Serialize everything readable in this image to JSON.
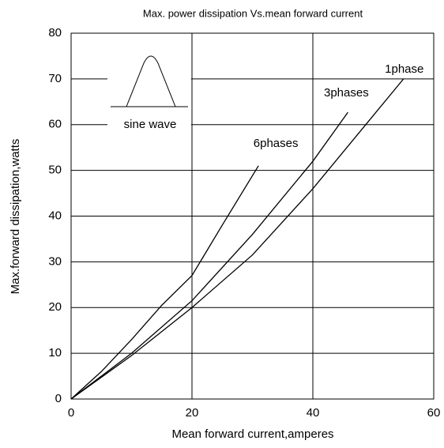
{
  "chart_data": {
    "type": "line",
    "title": "Max. power dissipation Vs.mean forward current",
    "x_label": "Mean forward current,amperes",
    "y_label": "Max.forward dissipation,watts",
    "inset_label": "sine wave",
    "xlim": [
      0,
      60
    ],
    "xticks": [
      0,
      20,
      40,
      60
    ],
    "ylim": [
      0,
      80
    ],
    "yticks": [
      0,
      10,
      20,
      30,
      40,
      50,
      60,
      70,
      80
    ],
    "grid": true,
    "series": [
      {
        "name": "1phase",
        "color": "#000000",
        "x": [
          0,
          10,
          20,
          30,
          40,
          50,
          55
        ],
        "values": [
          0,
          9.5,
          20,
          31.5,
          46,
          62,
          70
        ]
      },
      {
        "name": "3phases",
        "color": "#000000",
        "x": [
          0,
          10,
          20,
          30,
          40,
          45.8
        ],
        "values": [
          0,
          10,
          21.5,
          36,
          52,
          62.7
        ]
      },
      {
        "name": "6phases",
        "color": "#000000",
        "x": [
          0,
          5,
          10,
          15,
          20,
          25,
          31
        ],
        "values": [
          0,
          6,
          13,
          20.5,
          27,
          38,
          51
        ]
      }
    ]
  }
}
